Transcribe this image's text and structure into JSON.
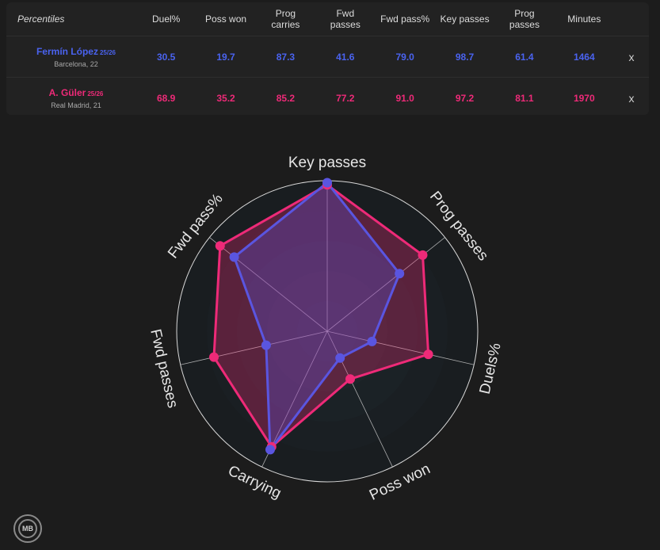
{
  "table": {
    "first_header": "Percentiles",
    "columns": [
      [
        "Duel%"
      ],
      [
        "Poss won"
      ],
      [
        "Prog",
        "carries"
      ],
      [
        "Fwd",
        "passes"
      ],
      [
        "Fwd pass%"
      ],
      [
        "Key passes"
      ],
      [
        "Prog",
        "passes"
      ],
      [
        "Minutes"
      ]
    ],
    "remove_label": "x",
    "players": [
      {
        "name": "Fermín López",
        "season": "25/26",
        "sub": "Barcelona, 22",
        "color": "#4a63f0",
        "cls": "blue",
        "values": [
          "30.5",
          "19.7",
          "87.3",
          "41.6",
          "79.0",
          "98.7",
          "61.4",
          "1464"
        ]
      },
      {
        "name": "A. Güler",
        "season": "25/26",
        "sub": "Real Madrid, 21",
        "color": "#ee2a78",
        "cls": "pink",
        "values": [
          "68.9",
          "35.2",
          "85.2",
          "77.2",
          "91.0",
          "97.2",
          "81.1",
          "1970"
        ]
      }
    ]
  },
  "chart_data": {
    "type": "radar",
    "axes": [
      "Key passes",
      "Prog passes",
      "Duels%",
      "Poss won",
      "Carrying",
      "Fwd passes",
      "Fwd pass%"
    ],
    "range": [
      0,
      100
    ],
    "series": [
      {
        "name": "A. Güler",
        "color": "#ee2a78",
        "values": [
          97.2,
          81.1,
          68.9,
          35.2,
          85.2,
          77.2,
          91.0
        ]
      },
      {
        "name": "Fermín López",
        "color": "#5a55e0",
        "values": [
          98.7,
          61.4,
          30.5,
          19.7,
          87.3,
          41.6,
          79.0
        ]
      }
    ]
  },
  "logo": {
    "text": "MB"
  }
}
